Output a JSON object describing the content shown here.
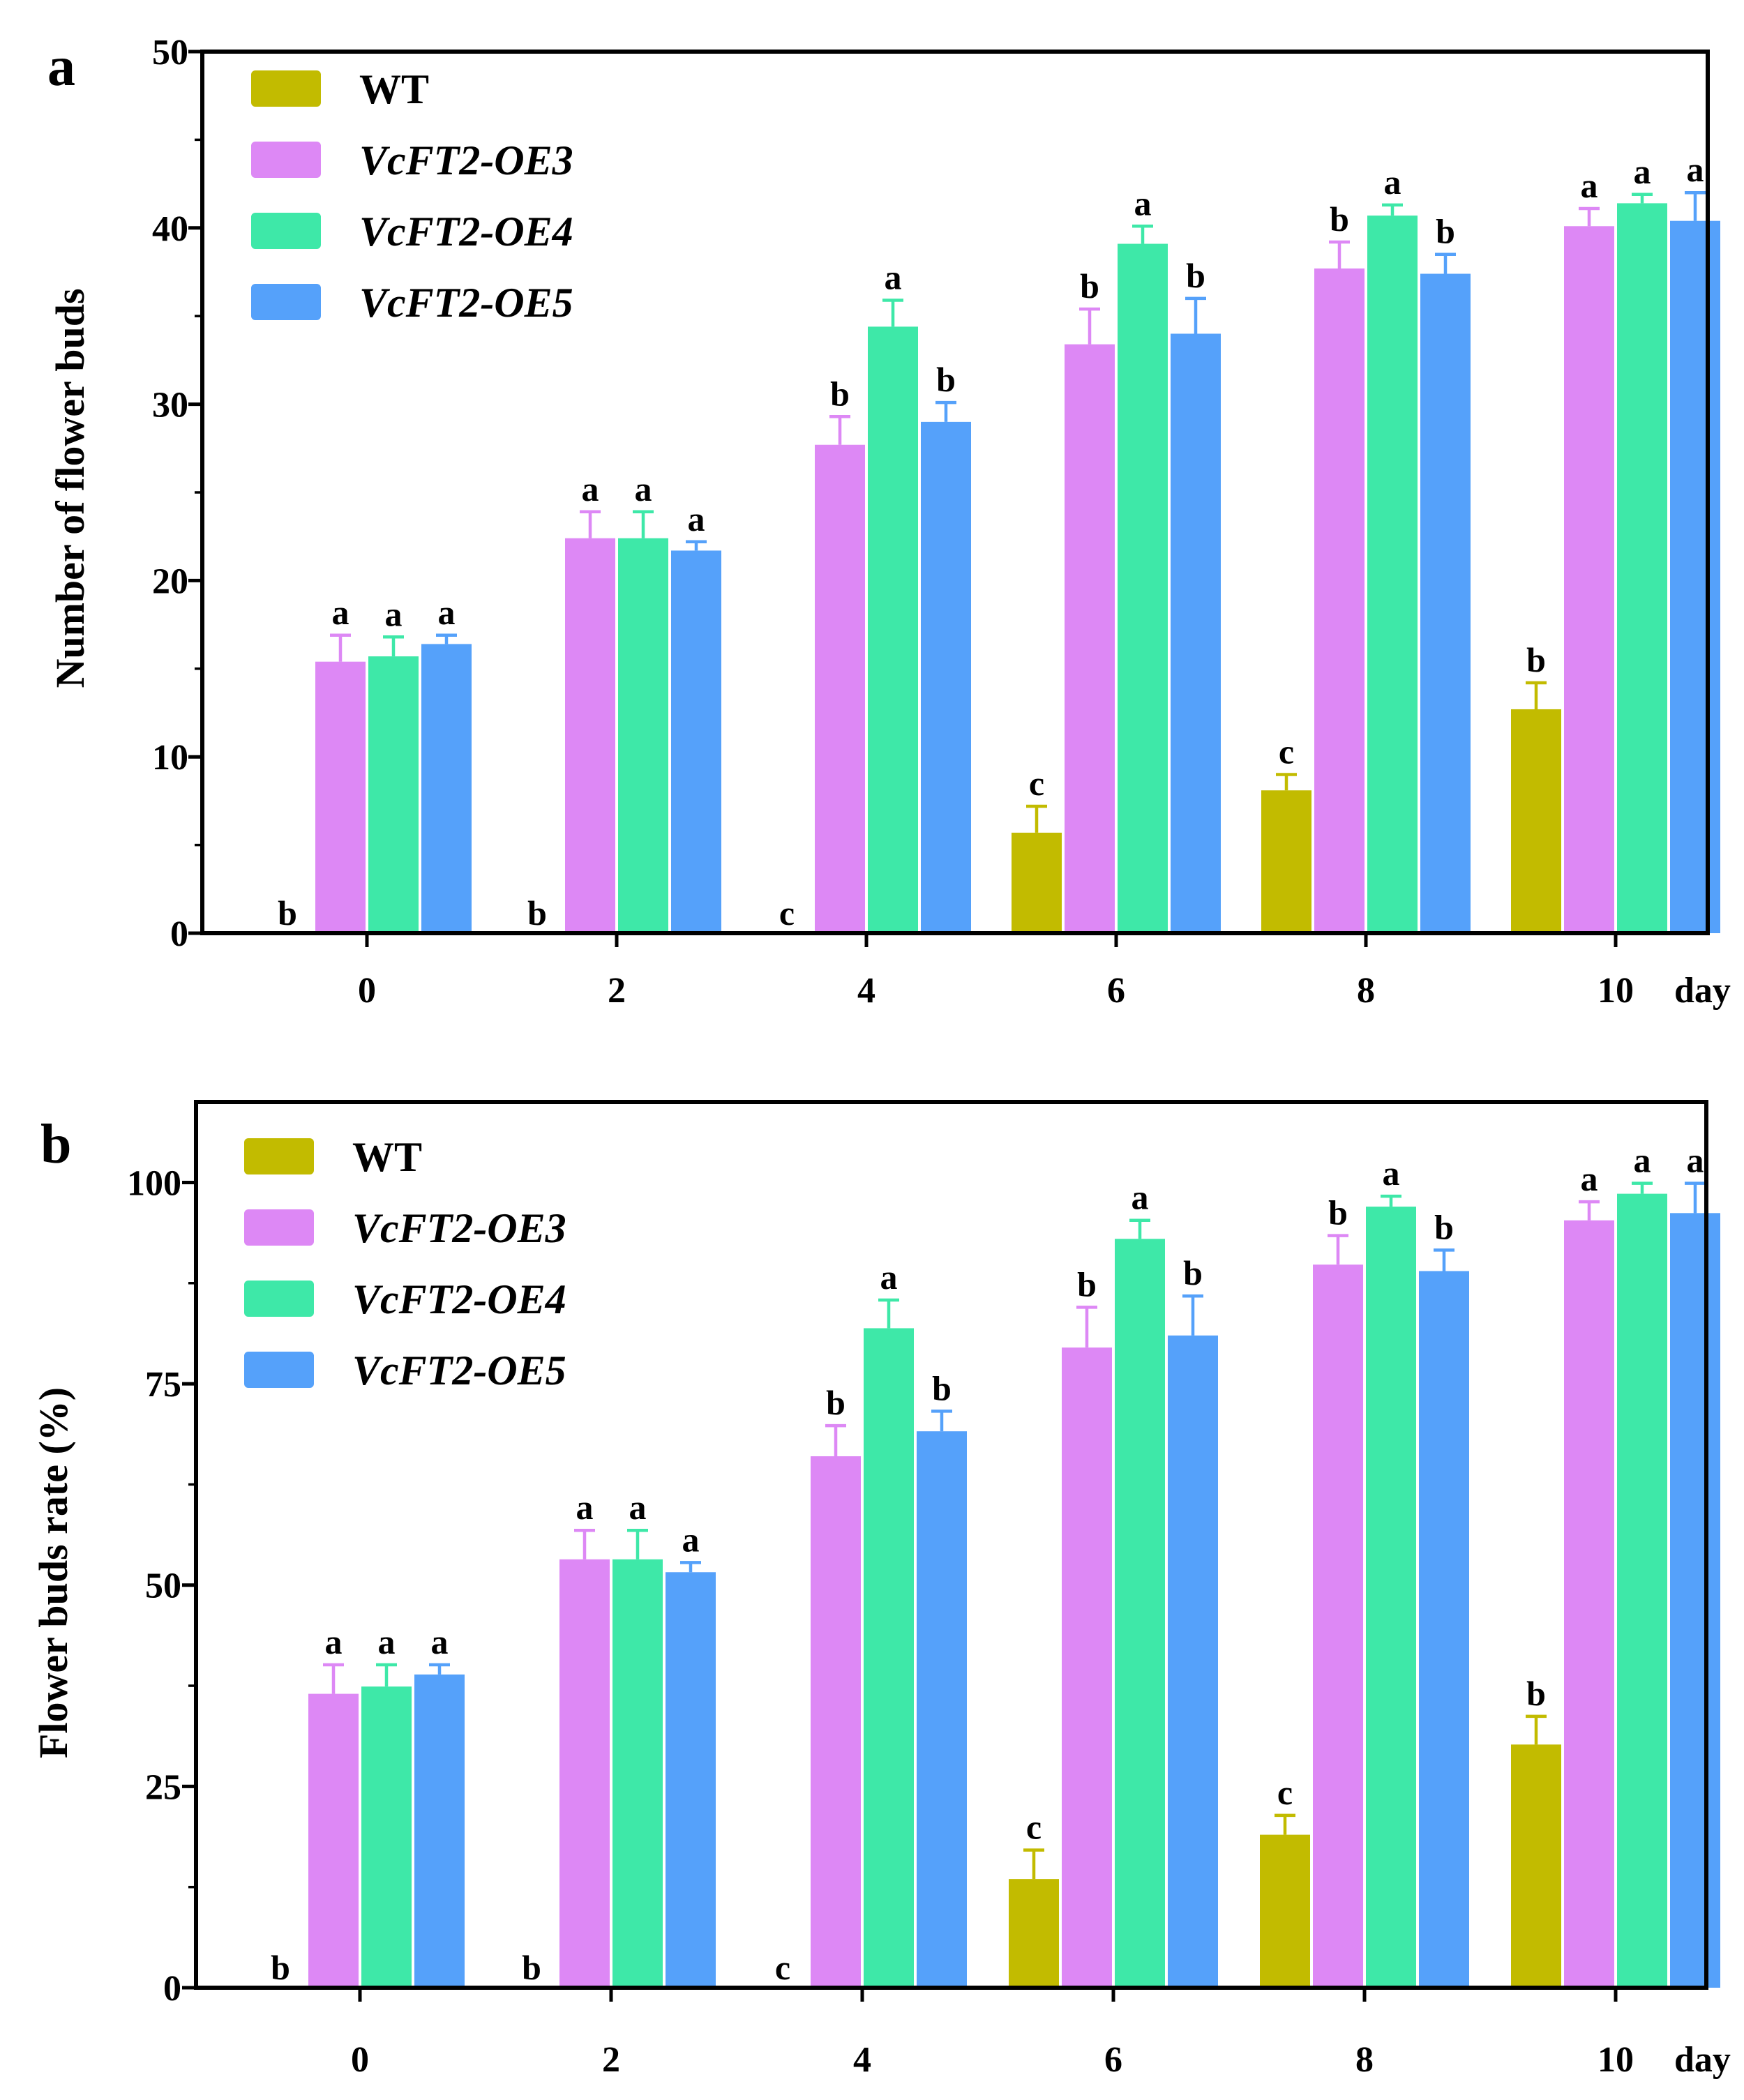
{
  "chart_data": [
    {
      "panel": "a",
      "type": "bar",
      "title": "",
      "xlabel": "day",
      "ylabel": "Number of flower buds",
      "ylim": [
        0,
        50
      ],
      "yticks": [
        "0",
        "10",
        "20",
        "30",
        "40",
        "50"
      ],
      "categories": [
        "0",
        "2",
        "4",
        "6",
        "8",
        "10"
      ],
      "legend_position": "top-left",
      "series": [
        {
          "name": "WT",
          "italic": false,
          "color": "#c2bb00",
          "values": [
            0,
            0,
            0,
            5.7,
            8.1,
            12.7
          ],
          "errors": [
            0,
            0,
            0,
            1.5,
            0.9,
            1.5
          ],
          "labels": [
            "b",
            "b",
            "c",
            "c",
            "c",
            "b"
          ]
        },
        {
          "name": "VcFT2-OE3",
          "italic": true,
          "color": "#dd88f5",
          "values": [
            15.4,
            22.4,
            27.7,
            33.4,
            37.7,
            40.1
          ],
          "errors": [
            1.5,
            1.5,
            1.6,
            2.0,
            1.5,
            1.0
          ],
          "labels": [
            "a",
            "a",
            "b",
            "b",
            "b",
            "a"
          ]
        },
        {
          "name": "VcFT2-OE4",
          "italic": true,
          "color": "#3ee8a8",
          "values": [
            15.7,
            22.4,
            34.4,
            39.1,
            40.7,
            41.4
          ],
          "errors": [
            1.1,
            1.5,
            1.5,
            1.0,
            0.6,
            0.5
          ],
          "labels": [
            "a",
            "a",
            "a",
            "a",
            "a",
            "a"
          ]
        },
        {
          "name": "VcFT2-OE5",
          "italic": true,
          "color": "#55a1fa",
          "values": [
            16.4,
            21.7,
            29.0,
            34.0,
            37.4,
            40.4
          ],
          "errors": [
            0.5,
            0.5,
            1.1,
            2.0,
            1.1,
            1.6
          ],
          "labels": [
            "a",
            "a",
            "b",
            "b",
            "b",
            "a"
          ]
        }
      ]
    },
    {
      "panel": "b",
      "type": "bar",
      "title": "",
      "xlabel": "day",
      "ylabel": "Flower buds rate (%)",
      "ylim": [
        0,
        110
      ],
      "yticks": [
        "0",
        "25",
        "50",
        "75",
        "100"
      ],
      "categories": [
        "0",
        "2",
        "4",
        "6",
        "8",
        "10"
      ],
      "legend_position": "top-left",
      "series": [
        {
          "name": "WT",
          "italic": false,
          "color": "#c2bb00",
          "values": [
            0,
            0,
            0,
            13.5,
            19.0,
            30.2
          ],
          "errors": [
            0,
            0,
            0,
            3.6,
            2.4,
            3.5
          ],
          "labels": [
            "b",
            "b",
            "c",
            "c",
            "c",
            "b"
          ]
        },
        {
          "name": "VcFT2-OE3",
          "italic": true,
          "color": "#dd88f5",
          "values": [
            36.5,
            53.2,
            66.0,
            79.5,
            89.8,
            95.3
          ],
          "errors": [
            3.6,
            3.6,
            3.8,
            5.0,
            3.6,
            2.3
          ],
          "labels": [
            "a",
            "a",
            "b",
            "b",
            "b",
            "a"
          ]
        },
        {
          "name": "VcFT2-OE4",
          "italic": true,
          "color": "#3ee8a8",
          "values": [
            37.4,
            53.2,
            81.9,
            93.0,
            97.0,
            98.6
          ],
          "errors": [
            2.7,
            3.6,
            3.5,
            2.3,
            1.3,
            1.3
          ],
          "labels": [
            "a",
            "a",
            "a",
            "a",
            "a",
            "a"
          ]
        },
        {
          "name": "VcFT2-OE5",
          "italic": true,
          "color": "#55a1fa",
          "values": [
            38.9,
            51.6,
            69.1,
            81.0,
            89.0,
            96.2
          ],
          "errors": [
            1.2,
            1.2,
            2.5,
            4.9,
            2.6,
            3.7
          ],
          "labels": [
            "a",
            "a",
            "b",
            "b",
            "b",
            "a"
          ]
        }
      ]
    }
  ]
}
